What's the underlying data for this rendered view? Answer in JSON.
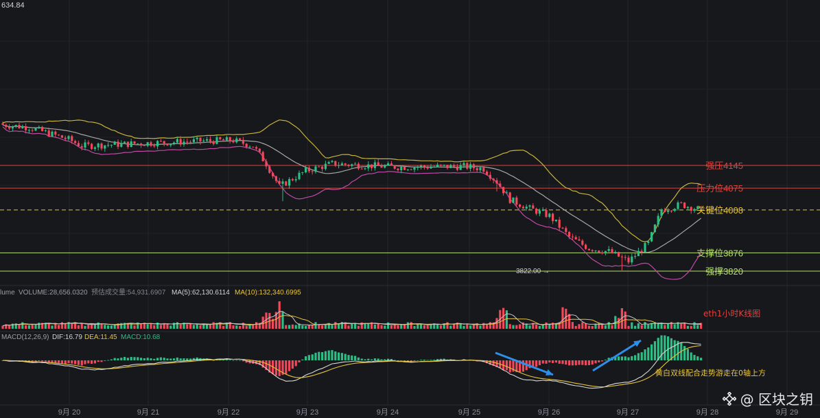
{
  "chart_data": {
    "type": "candlestick",
    "title": "eth1小时K线图",
    "price_top_label": "634.84",
    "x_ticks": [
      "9月 20",
      "9月 21",
      "9月 22",
      "9月 23",
      "9月 24",
      "9月 25",
      "9月 26",
      "9月 27",
      "9月 28",
      "9月 29"
    ],
    "levels": [
      {
        "label": "强压4145",
        "value": 4145,
        "color": "#e0433f",
        "style": "solid"
      },
      {
        "label": "压力位4075",
        "value": 4075,
        "color": "#e0433f",
        "style": "solid"
      },
      {
        "label": "关键位4008",
        "value": 4008,
        "color": "#e8c53a",
        "style": "dashed"
      },
      {
        "label": "支撑位3876",
        "value": 3876,
        "color": "#b5e06b",
        "style": "solid"
      },
      {
        "label": "强撑3820",
        "value": 3820,
        "color": "#b5e06b",
        "style": "solid"
      }
    ],
    "low_marker": "3822.00",
    "volume_header": {
      "prefix": "lume",
      "volume": "VOLUME:28,656.0320",
      "estimate": "预估成交量:54,931.6907",
      "ma5": "MA(5):62,130.6114",
      "ma10": "MA(10):132,340.6995"
    },
    "macd_header": {
      "name": "MACD(12,26,9)",
      "dif": "DIF:16.79",
      "dea": "DEA:11.45",
      "macd": "MACD:10.68"
    },
    "annotation": "黄白双线配合走势游走在0轴上方",
    "colors": {
      "up": "#2ebd85",
      "down": "#f0495a",
      "boll_upper": "#c9b43a",
      "boll_mid": "#a7a7a7",
      "boll_lower": "#c04aa5",
      "arrow": "#2f8ee8"
    }
  },
  "watermark": "@ 区块之钥"
}
